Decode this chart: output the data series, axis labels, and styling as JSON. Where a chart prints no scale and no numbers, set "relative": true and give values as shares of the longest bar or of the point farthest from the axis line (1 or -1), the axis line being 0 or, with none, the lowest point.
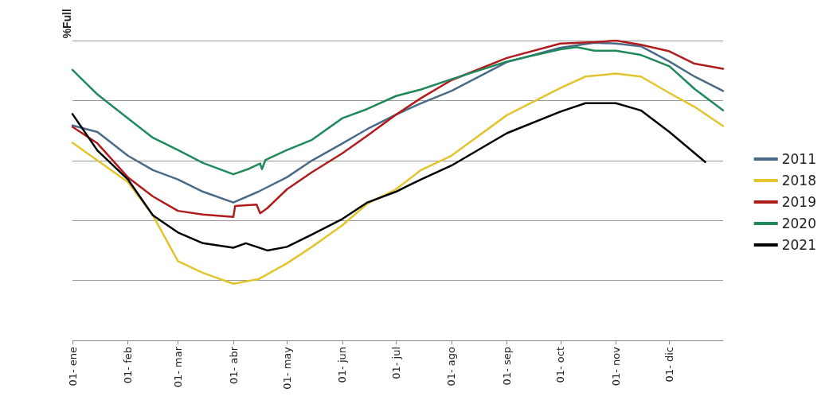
{
  "chart_data": {
    "type": "line",
    "ylabel": "%Full",
    "relative": true,
    "grid": "y",
    "legend": "right",
    "marker": "none",
    "line_style": "solid",
    "xlim": [
      "--01-01",
      "--12-31"
    ],
    "xticks": [
      {
        "value": "--01-01",
        "label": "01- ene"
      },
      {
        "value": "--02-01",
        "label": "01- feb"
      },
      {
        "value": "--03-01",
        "label": "01- mar"
      },
      {
        "value": "--04-01",
        "label": "01- abr"
      },
      {
        "value": "--05-01",
        "label": "01- may"
      },
      {
        "value": "--06-01",
        "label": "01- jun"
      },
      {
        "value": "--07-01",
        "label": "01- jul"
      },
      {
        "value": "--08-01",
        "label": "01- ago"
      },
      {
        "value": "--09-01",
        "label": "01- sep"
      },
      {
        "value": "--10-01",
        "label": "01- oct"
      },
      {
        "value": "--11-01",
        "label": "01- nov"
      },
      {
        "value": "--12-01",
        "label": "01- dic"
      }
    ],
    "series": [
      {
        "name": "2011",
        "color": "#4a6a8a",
        "x": [
          "--01-01",
          "--01-15",
          "--02-01",
          "--02-15",
          "--03-01",
          "--03-15",
          "--04-01",
          "--04-15",
          "--05-01",
          "--05-15",
          "--06-01",
          "--06-15",
          "--07-01",
          "--07-15",
          "--08-01",
          "--09-01",
          "--10-01",
          "--10-20",
          "--11-01",
          "--11-15",
          "--12-01",
          "--12-15",
          "--12-31"
        ],
        "values": [
          0.717,
          0.695,
          0.616,
          0.568,
          0.537,
          0.496,
          0.46,
          0.496,
          0.544,
          0.6,
          0.657,
          0.705,
          0.753,
          0.791,
          0.832,
          0.928,
          0.976,
          0.993,
          0.99,
          0.981,
          0.93,
          0.88,
          0.832
        ]
      },
      {
        "name": "2018",
        "color": "#e2c42e",
        "x": [
          "--01-01",
          "--01-15",
          "--02-01",
          "--02-15",
          "--03-01",
          "--03-15",
          "--04-01",
          "--04-15",
          "--05-01",
          "--05-15",
          "--06-01",
          "--06-15",
          "--07-01",
          "--07-15",
          "--08-01",
          "--09-01",
          "--10-01",
          "--10-15",
          "--11-01",
          "--11-15",
          "--12-01",
          "--12-15",
          "--12-31"
        ],
        "values": [
          0.659,
          0.6,
          0.528,
          0.417,
          0.264,
          0.225,
          0.189,
          0.204,
          0.257,
          0.312,
          0.384,
          0.456,
          0.504,
          0.568,
          0.616,
          0.751,
          0.842,
          0.88,
          0.89,
          0.88,
          0.825,
          0.779,
          0.715
        ]
      },
      {
        "name": "2019",
        "color": "#b01c1c",
        "x": [
          "--01-01",
          "--01-15",
          "--02-01",
          "--02-15",
          "--03-01",
          "--03-15",
          "--04-01",
          "--04-02",
          "--04-14",
          "--04-16",
          "--04-20",
          "--05-01",
          "--05-15",
          "--06-01",
          "--06-15",
          "--07-01",
          "--07-15",
          "--08-01",
          "--09-01",
          "--10-01",
          "--10-20",
          "--11-01",
          "--11-15",
          "--12-01",
          "--12-15",
          "--12-31"
        ],
        "values": [
          0.712,
          0.657,
          0.544,
          0.48,
          0.432,
          0.42,
          0.412,
          0.448,
          0.453,
          0.424,
          0.441,
          0.504,
          0.561,
          0.624,
          0.683,
          0.753,
          0.808,
          0.868,
          0.942,
          0.99,
          0.995,
          1,
          0.986,
          0.964,
          0.923,
          0.906
        ]
      },
      {
        "name": "2020",
        "color": "#1e8a5a",
        "x": [
          "--01-01",
          "--01-15",
          "--02-01",
          "--02-15",
          "--03-01",
          "--03-15",
          "--04-01",
          "--04-10",
          "--04-16",
          "--04-17",
          "--04-19",
          "--05-01",
          "--05-15",
          "--06-01",
          "--06-15",
          "--07-01",
          "--07-15",
          "--08-01",
          "--09-01",
          "--10-01",
          "--10-10",
          "--10-20",
          "--11-01",
          "--11-15",
          "--12-01",
          "--12-15",
          "--12-31"
        ],
        "values": [
          0.902,
          0.82,
          0.741,
          0.676,
          0.635,
          0.592,
          0.554,
          0.573,
          0.59,
          0.571,
          0.602,
          0.635,
          0.669,
          0.741,
          0.772,
          0.815,
          0.837,
          0.871,
          0.93,
          0.971,
          0.978,
          0.966,
          0.966,
          0.952,
          0.914,
          0.839,
          0.767
        ]
      },
      {
        "name": "2021",
        "color": "#000000",
        "x": [
          "--01-01",
          "--01-15",
          "--02-01",
          "--02-15",
          "--03-01",
          "--03-15",
          "--04-01",
          "--04-08",
          "--04-20",
          "--05-01",
          "--05-15",
          "--06-01",
          "--06-15",
          "--07-01",
          "--07-15",
          "--08-01",
          "--09-01",
          "--10-01",
          "--10-15",
          "--11-01",
          "--11-15",
          "--12-01",
          "--12-21"
        ],
        "values": [
          0.755,
          0.633,
          0.537,
          0.417,
          0.36,
          0.324,
          0.309,
          0.324,
          0.3,
          0.312,
          0.353,
          0.405,
          0.46,
          0.496,
          0.537,
          0.583,
          0.691,
          0.763,
          0.791,
          0.791,
          0.767,
          0.695,
          0.595
        ]
      }
    ]
  }
}
